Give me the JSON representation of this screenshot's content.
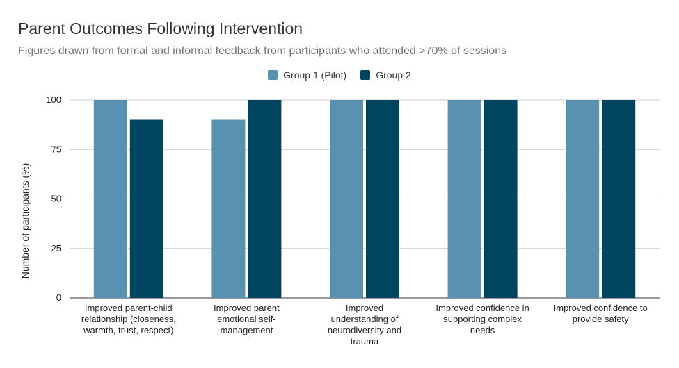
{
  "chart_data": {
    "type": "bar",
    "title": "Parent Outcomes Following Intervention",
    "subtitle": "Figures drawn from formal and informal feedback from participants who attended >70% of sessions",
    "ylabel": "Number of participants (%)",
    "xlabel": "",
    "ylim": [
      0,
      100
    ],
    "yticks": [
      "0",
      "25",
      "50",
      "75",
      "100"
    ],
    "grid": true,
    "legend_position": "top",
    "categories": [
      [
        "Improved parent-child",
        "relationship (closeness,",
        "warmth, trust, respect)"
      ],
      [
        "Improved parent",
        "emotional self-",
        "management"
      ],
      [
        "Improved",
        "understanding of",
        "neurodiversity and",
        "trauma"
      ],
      [
        "Improved confidence in",
        "supporting complex",
        "needs"
      ],
      [
        "Improved confidence to",
        "provide safety"
      ]
    ],
    "series": [
      {
        "name": "Group 1 (Pilot)",
        "color": "#5892b0",
        "values": [
          100,
          90,
          100,
          100,
          100
        ]
      },
      {
        "name": "Group 2",
        "color": "#00455f",
        "values": [
          90,
          100,
          100,
          100,
          100
        ]
      }
    ]
  }
}
